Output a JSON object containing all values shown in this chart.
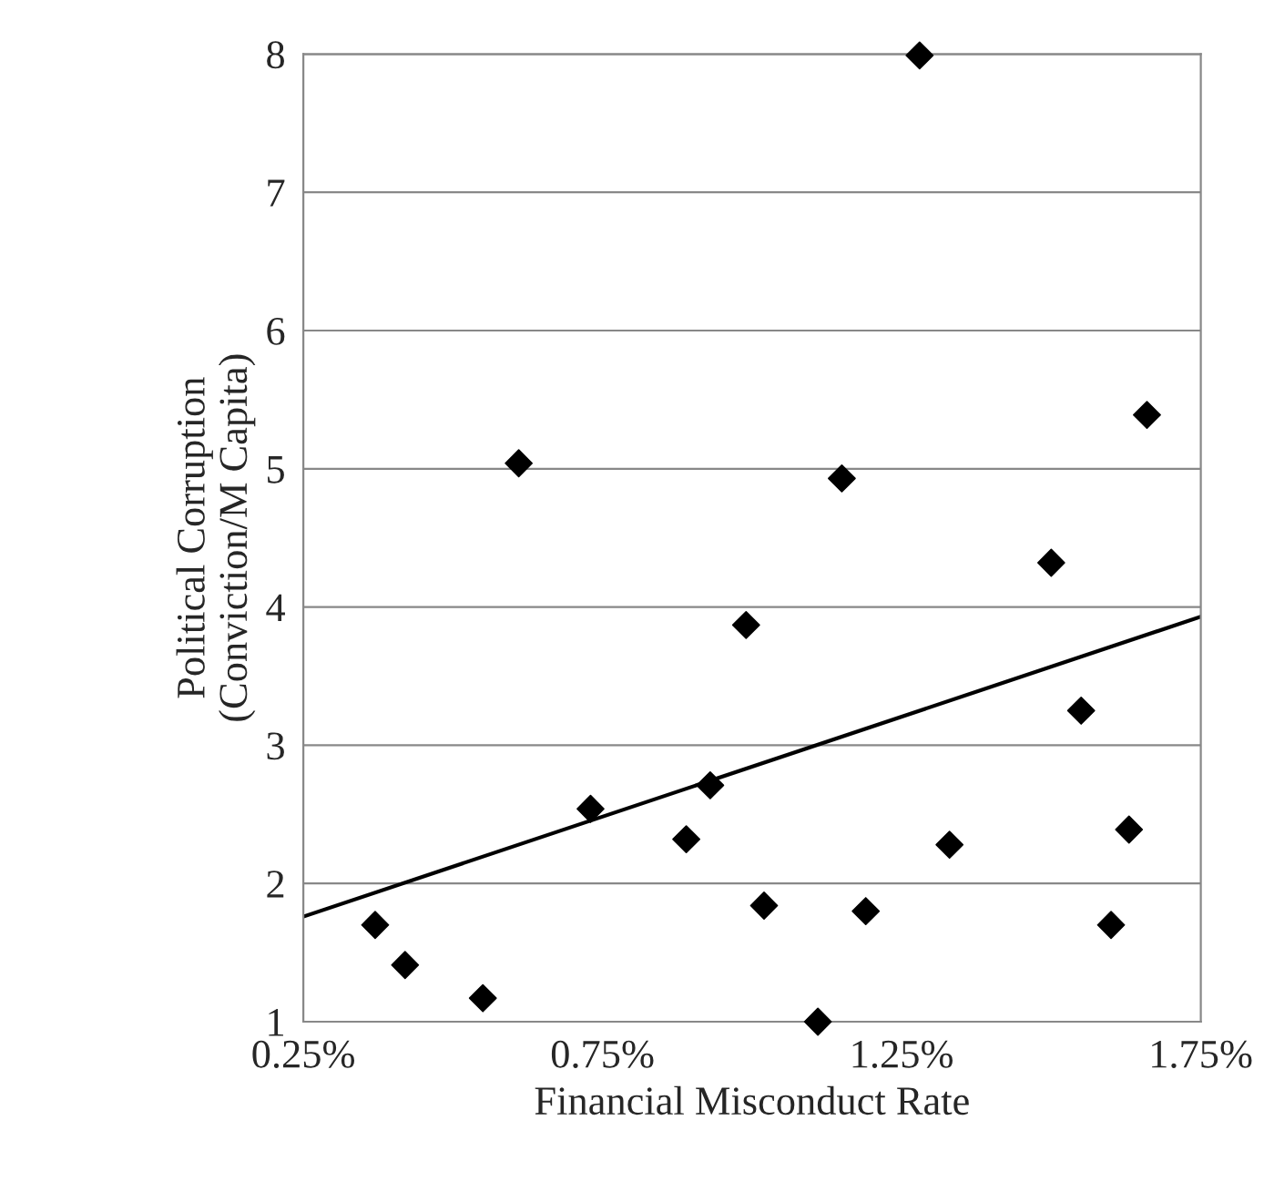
{
  "chart_data": {
    "type": "scatter",
    "xlabel": "Financial Misconduct Rate",
    "ylabel": "Political Corruption\n(Conviction/M Capita)",
    "xlim": [
      0.25,
      1.75
    ],
    "xticks": [
      {
        "value": 0.25,
        "label": "0.25%"
      },
      {
        "value": 0.75,
        "label": "0.75%"
      },
      {
        "value": 1.25,
        "label": "1.25%"
      },
      {
        "value": 1.75,
        "label": "1.75%"
      }
    ],
    "ylim": [
      1,
      8
    ],
    "yticks": [
      1,
      2,
      3,
      4,
      5,
      6,
      7,
      8
    ],
    "grid": "y",
    "marker": "diamond",
    "legend": false,
    "series": [
      {
        "color": "#000000",
        "x": [
          0.37,
          0.42,
          0.55,
          0.61,
          0.73,
          0.89,
          0.93,
          0.99,
          1.02,
          1.11,
          1.15,
          1.19,
          1.28,
          1.33,
          1.5,
          1.55,
          1.6,
          1.63,
          1.66
        ],
        "values": [
          1.7,
          1.41,
          1.17,
          5.04,
          2.54,
          2.32,
          2.71,
          3.87,
          1.84,
          1.0,
          4.93,
          1.8,
          7.99,
          2.28,
          4.32,
          3.25,
          1.7,
          2.39,
          5.39
        ]
      },
      {
        "type": "line",
        "color": "#000000",
        "x": [
          0.25,
          1.75
        ],
        "values": [
          1.76,
          3.93
        ],
        "marker": "none"
      }
    ]
  }
}
